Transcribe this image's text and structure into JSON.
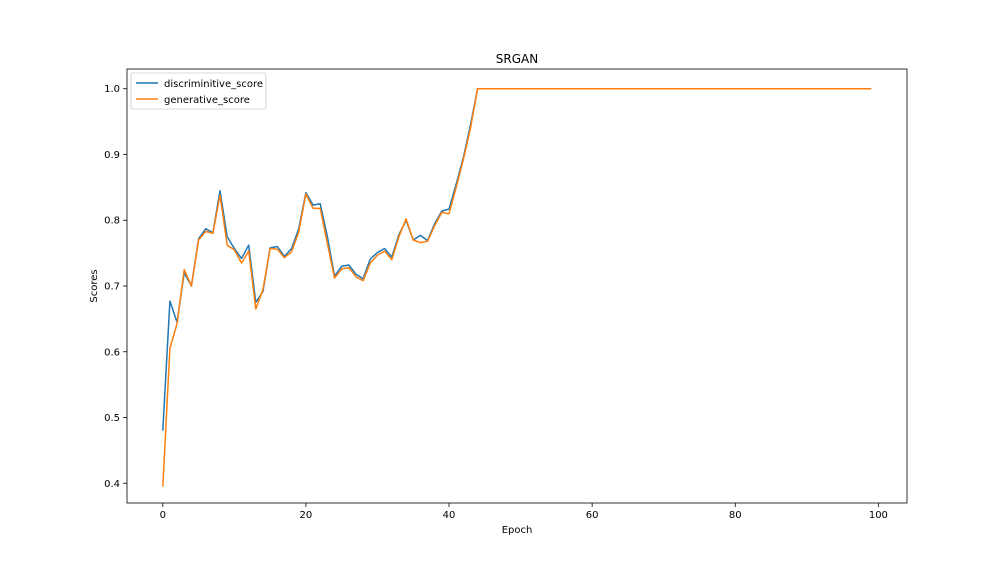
{
  "chart_data": {
    "type": "line",
    "title": "SRGAN",
    "xlabel": "Epoch",
    "ylabel": "Scores",
    "xlim": [
      -5,
      104
    ],
    "ylim": [
      0.37,
      1.03
    ],
    "xticks": [
      0,
      20,
      40,
      60,
      80,
      100
    ],
    "yticks": [
      0.4,
      0.5,
      0.6,
      0.7,
      0.8,
      0.9,
      1.0
    ],
    "xtick_labels": [
      "0",
      "20",
      "40",
      "60",
      "80",
      "100"
    ],
    "ytick_labels": [
      "0.4",
      "0.5",
      "0.6",
      "0.7",
      "0.8",
      "0.9",
      "1.0"
    ],
    "grid": false,
    "legend_position": "top-left",
    "series": [
      {
        "name": "discriminitive_score",
        "color": "#1f77b4",
        "x": [
          0,
          1,
          2,
          3,
          4,
          5,
          6,
          7,
          8,
          9,
          10,
          11,
          12,
          13,
          14,
          15,
          16,
          17,
          18,
          19,
          20,
          21,
          22,
          23,
          24,
          25,
          26,
          27,
          28,
          29,
          30,
          31,
          32,
          33,
          34,
          35,
          36,
          37,
          38,
          39,
          40,
          41,
          42,
          43,
          44,
          99
        ],
        "y": [
          0.48,
          0.677,
          0.645,
          0.72,
          0.7,
          0.772,
          0.787,
          0.781,
          0.845,
          0.775,
          0.757,
          0.742,
          0.762,
          0.675,
          0.692,
          0.758,
          0.76,
          0.745,
          0.757,
          0.787,
          0.842,
          0.823,
          0.825,
          0.775,
          0.715,
          0.73,
          0.732,
          0.718,
          0.711,
          0.741,
          0.751,
          0.757,
          0.744,
          0.778,
          0.8,
          0.77,
          0.777,
          0.769,
          0.795,
          0.814,
          0.817,
          0.855,
          0.895,
          0.945,
          1.0,
          1.0
        ]
      },
      {
        "name": "generative_score",
        "color": "#ff7f0e",
        "x": [
          0,
          1,
          2,
          3,
          4,
          5,
          6,
          7,
          8,
          9,
          10,
          11,
          12,
          13,
          14,
          15,
          16,
          17,
          18,
          19,
          20,
          21,
          22,
          23,
          24,
          25,
          26,
          27,
          28,
          29,
          30,
          31,
          32,
          33,
          34,
          35,
          36,
          37,
          38,
          39,
          40,
          41,
          42,
          43,
          44,
          99
        ],
        "y": [
          0.395,
          0.605,
          0.643,
          0.725,
          0.7,
          0.77,
          0.783,
          0.78,
          0.838,
          0.762,
          0.755,
          0.735,
          0.753,
          0.665,
          0.695,
          0.757,
          0.756,
          0.743,
          0.752,
          0.782,
          0.84,
          0.818,
          0.818,
          0.765,
          0.712,
          0.726,
          0.728,
          0.714,
          0.708,
          0.735,
          0.747,
          0.753,
          0.74,
          0.775,
          0.802,
          0.77,
          0.766,
          0.768,
          0.792,
          0.812,
          0.81,
          0.85,
          0.892,
          0.94,
          1.0,
          1.0
        ]
      }
    ]
  }
}
